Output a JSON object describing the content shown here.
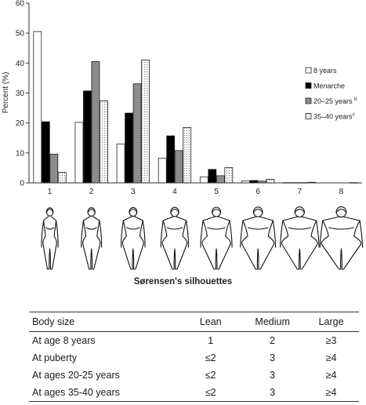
{
  "chart_data": {
    "type": "bar",
    "ylabel": "Percent (%)",
    "xlabel": "Sørensen's silhouettes",
    "ylim": [
      0,
      60
    ],
    "yticks": [
      0,
      10,
      20,
      30,
      40,
      50,
      60
    ],
    "categories": [
      "1",
      "2",
      "3",
      "4",
      "5",
      "6",
      "7",
      "8"
    ],
    "legend_position": "right",
    "series": [
      {
        "name": "8 years",
        "fill": "white",
        "values": [
          50.5,
          20.2,
          13,
          8.2,
          2,
          0.7,
          0.1,
          0
        ]
      },
      {
        "name": "Menarche",
        "fill": "black",
        "values": [
          20.4,
          30.7,
          23.3,
          15.7,
          4.5,
          0.8,
          0.1,
          0
        ]
      },
      {
        "name": "20–25 years ",
        "sup": "b",
        "fill": "gray",
        "values": [
          9.6,
          40.5,
          33.1,
          10.8,
          2.4,
          0.6,
          0.1,
          0
        ]
      },
      {
        "name": "35–40 years",
        "sup": "c",
        "fill": "dotted",
        "values": [
          3.5,
          27.4,
          41,
          18.5,
          5.1,
          1.2,
          0.2,
          0.1
        ]
      }
    ],
    "colors": {
      "white": "#ffffff",
      "black": "#000000",
      "gray": "#8c8c8c",
      "dotted": "#f1f1f1",
      "stroke": "#222222"
    }
  },
  "table": {
    "headers": [
      "Body size",
      "Lean",
      "Medium",
      "Large"
    ],
    "rows": [
      [
        "At age 8 years",
        "1",
        "2",
        "≥3"
      ],
      [
        "At puberty",
        "≤2",
        "3",
        "≥4"
      ],
      [
        "At ages 20-25 years",
        "≤2",
        "3",
        "≥4"
      ],
      [
        "At ages 35-40 years",
        "≤2",
        "3",
        "≥4"
      ]
    ]
  }
}
